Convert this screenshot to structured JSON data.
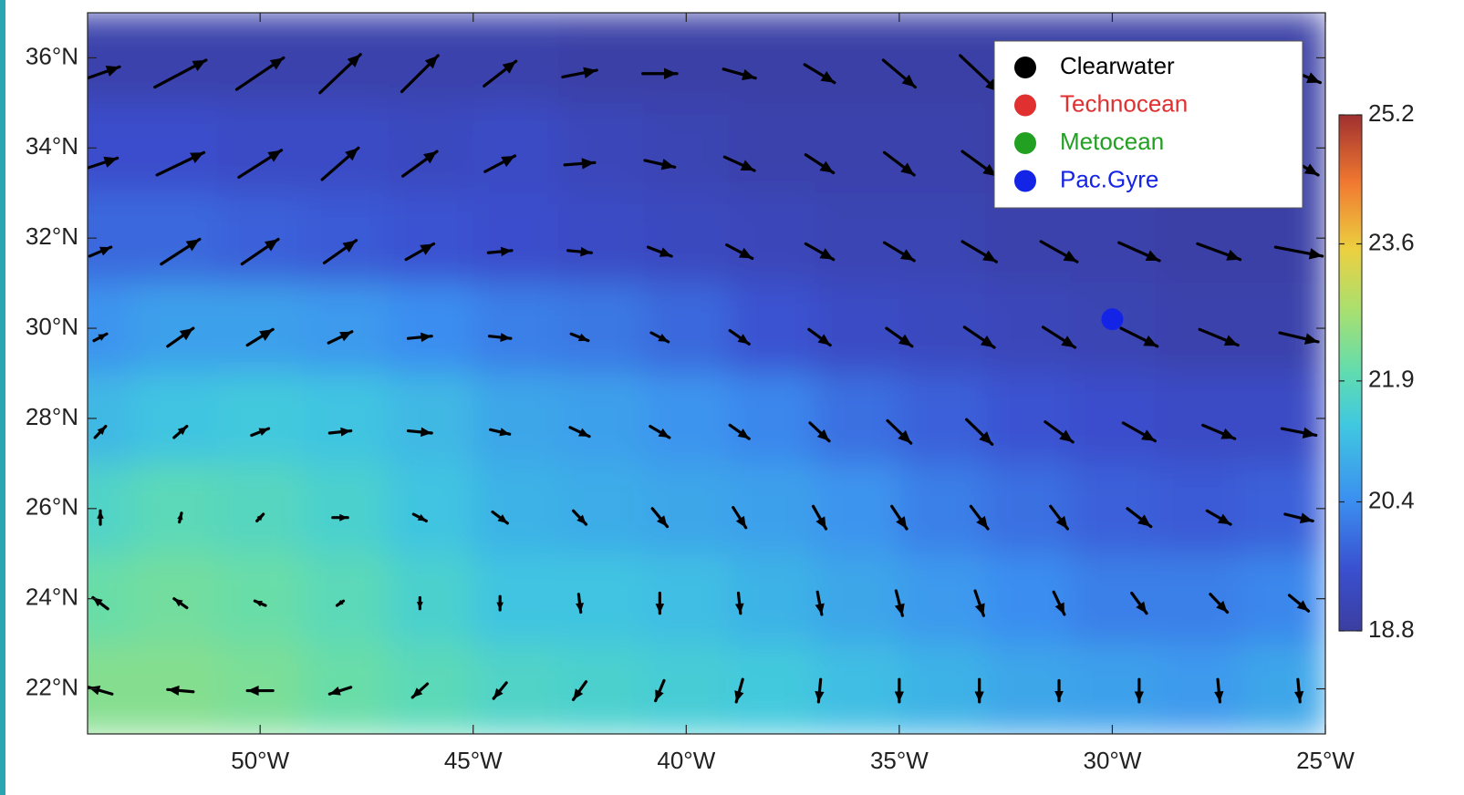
{
  "chart_data": {
    "type": "map",
    "xlim": [
      -54.05,
      -25
    ],
    "ylim": [
      21,
      37
    ],
    "xticks": [
      {
        "value": -50,
        "label": "50°W"
      },
      {
        "value": -45,
        "label": "45°W"
      },
      {
        "value": -40,
        "label": "40°W"
      },
      {
        "value": -35,
        "label": "35°W"
      },
      {
        "value": -30,
        "label": "30°W"
      },
      {
        "value": -25,
        "label": "25°W"
      }
    ],
    "yticks": [
      {
        "value": 22,
        "label": "22°N"
      },
      {
        "value": 24,
        "label": "24°N"
      },
      {
        "value": 26,
        "label": "26°N"
      },
      {
        "value": 28,
        "label": "28°N"
      },
      {
        "value": 30,
        "label": "30°N"
      },
      {
        "value": 32,
        "label": "32°N"
      },
      {
        "value": 34,
        "label": "34°N"
      },
      {
        "value": 36,
        "label": "36°N"
      }
    ],
    "sst": {
      "lon_edges": [
        -55,
        -53,
        -51,
        -49,
        -47,
        -45,
        -43,
        -41,
        -39,
        -37,
        -35,
        -33,
        -31,
        -29,
        -27,
        -25
      ],
      "lat_edges": [
        37,
        35,
        33,
        31,
        29,
        27,
        25,
        23,
        21
      ],
      "values": [
        [
          19.0,
          19.0,
          19.0,
          19.0,
          19.0,
          19.0,
          18.9,
          18.9,
          18.9,
          18.9,
          18.9,
          18.9,
          18.9,
          18.9,
          18.9
        ],
        [
          19.5,
          19.5,
          19.4,
          19.4,
          19.3,
          19.4,
          19.2,
          19.1,
          19.0,
          19.0,
          19.0,
          18.9,
          18.9,
          18.9,
          18.9
        ],
        [
          19.9,
          19.9,
          19.8,
          19.7,
          19.6,
          19.5,
          19.4,
          19.3,
          19.2,
          19.1,
          19.1,
          19.0,
          19.0,
          18.9,
          18.9
        ],
        [
          20.5,
          20.7,
          20.7,
          20.6,
          20.4,
          20.2,
          20.1,
          19.9,
          19.6,
          19.4,
          19.3,
          19.2,
          19.1,
          19.0,
          19.0
        ],
        [
          21.1,
          21.3,
          21.4,
          21.3,
          21.1,
          20.8,
          20.7,
          20.5,
          20.3,
          20.0,
          19.8,
          19.6,
          19.5,
          19.4,
          19.4
        ],
        [
          21.7,
          21.9,
          21.8,
          21.6,
          21.3,
          21.0,
          20.9,
          20.8,
          20.7,
          20.5,
          20.2,
          20.0,
          19.8,
          19.7,
          19.8
        ],
        [
          22.1,
          22.2,
          22.1,
          21.9,
          21.6,
          21.3,
          21.3,
          21.2,
          21.0,
          20.8,
          20.6,
          20.4,
          20.2,
          20.2,
          20.3
        ],
        [
          22.4,
          22.4,
          22.3,
          22.1,
          21.9,
          21.7,
          21.6,
          21.5,
          21.4,
          21.2,
          21.0,
          20.8,
          20.7,
          20.6,
          20.8
        ]
      ]
    },
    "clim": [
      18.8,
      25.2
    ],
    "cticks": [
      18.8,
      20.4,
      21.9,
      23.6,
      25.2
    ],
    "vectors": {
      "lon": [
        -53.75,
        -51.87,
        -50.0,
        -48.12,
        -46.25,
        -44.37,
        -42.5,
        -40.62,
        -38.75,
        -36.87,
        -35.0,
        -33.12,
        -31.25,
        -29.37,
        -27.5,
        -25.62
      ],
      "lat": [
        35.65,
        33.65,
        31.7,
        29.8,
        27.7,
        25.8,
        23.9,
        21.96
      ],
      "u": [
        [
          0.9,
          1.2,
          1.1,
          0.95,
          0.85,
          0.75,
          0.8,
          0.8,
          0.75,
          0.7,
          0.75,
          0.9,
          1.0,
          1.0,
          1.0,
          1.0
        ],
        [
          0.8,
          1.1,
          1.0,
          0.85,
          0.8,
          0.7,
          0.7,
          0.7,
          0.7,
          0.65,
          0.7,
          0.8,
          0.9,
          0.9,
          0.9,
          0.9
        ],
        [
          0.5,
          0.9,
          0.85,
          0.75,
          0.65,
          0.55,
          0.55,
          0.55,
          0.6,
          0.65,
          0.7,
          0.8,
          0.85,
          0.95,
          1.0,
          1.1
        ],
        [
          0.3,
          0.6,
          0.6,
          0.55,
          0.55,
          0.5,
          0.4,
          0.4,
          0.45,
          0.5,
          0.6,
          0.7,
          0.75,
          0.85,
          0.9,
          0.9
        ],
        [
          0.25,
          0.3,
          0.4,
          0.5,
          0.55,
          0.45,
          0.45,
          0.45,
          0.45,
          0.45,
          0.55,
          0.6,
          0.65,
          0.75,
          0.75,
          0.8
        ],
        [
          0,
          0.05,
          0.15,
          0.35,
          0.3,
          0.35,
          0.3,
          0.35,
          0.3,
          0.3,
          0.35,
          0.4,
          0.4,
          0.55,
          0.55,
          0.65
        ],
        [
          -0.35,
          -0.3,
          -0.25,
          -0.15,
          0,
          0,
          0.05,
          0,
          0.05,
          0.1,
          0.15,
          0.2,
          0.25,
          0.35,
          0.4,
          0.45
        ],
        [
          -0.55,
          -0.6,
          -0.6,
          -0.5,
          -0.35,
          -0.3,
          -0.3,
          -0.2,
          -0.15,
          -0.05,
          0,
          0,
          0,
          0,
          0.05,
          0.05
        ]
      ],
      "v": [
        [
          0.3,
          0.6,
          0.7,
          0.85,
          0.8,
          0.55,
          0.15,
          0,
          -0.2,
          -0.4,
          -0.6,
          -0.8,
          -0.6,
          -0.5,
          -0.5,
          -0.4
        ],
        [
          0.25,
          0.5,
          0.6,
          0.7,
          0.55,
          0.35,
          0.05,
          -0.15,
          -0.3,
          -0.4,
          -0.5,
          -0.55,
          -0.5,
          -0.5,
          -0.5,
          -0.5
        ],
        [
          0.2,
          0.55,
          0.55,
          0.5,
          0.35,
          0.05,
          -0.05,
          -0.2,
          -0.3,
          -0.35,
          -0.4,
          -0.45,
          -0.45,
          -0.4,
          -0.35,
          -0.2
        ],
        [
          0.15,
          0.4,
          0.35,
          0.25,
          0.05,
          -0.05,
          -0.15,
          -0.2,
          -0.3,
          -0.35,
          -0.4,
          -0.45,
          -0.45,
          -0.4,
          -0.35,
          -0.2
        ],
        [
          0.25,
          0.25,
          0.15,
          0.05,
          -0.05,
          -0.1,
          -0.2,
          -0.25,
          -0.3,
          -0.4,
          -0.5,
          -0.55,
          -0.45,
          -0.4,
          -0.3,
          -0.15
        ],
        [
          0.3,
          0.2,
          0.15,
          0,
          -0.15,
          -0.25,
          -0.3,
          -0.4,
          -0.45,
          -0.5,
          -0.5,
          -0.5,
          -0.5,
          -0.4,
          -0.3,
          -0.15
        ],
        [
          0.25,
          0.2,
          0.1,
          -0.1,
          -0.25,
          -0.3,
          -0.4,
          -0.45,
          -0.45,
          -0.5,
          -0.55,
          -0.55,
          -0.5,
          -0.45,
          -0.4,
          -0.35
        ],
        [
          0.15,
          0.05,
          0,
          -0.15,
          -0.3,
          -0.35,
          -0.4,
          -0.45,
          -0.5,
          -0.5,
          -0.5,
          -0.5,
          -0.45,
          -0.5,
          -0.5,
          -0.5
        ]
      ]
    },
    "series": [
      {
        "name": "Clearwater",
        "color": "#000000",
        "lon": [],
        "lat": []
      },
      {
        "name": "Technocean",
        "color": "#e03030",
        "lon": [],
        "lat": []
      },
      {
        "name": "Metocean",
        "color": "#22a022",
        "lon": [],
        "lat": []
      },
      {
        "name": "Pac.Gyre",
        "color": "#1424e6",
        "lon": [
          -30
        ],
        "lat": [
          30.2
        ]
      }
    ]
  }
}
